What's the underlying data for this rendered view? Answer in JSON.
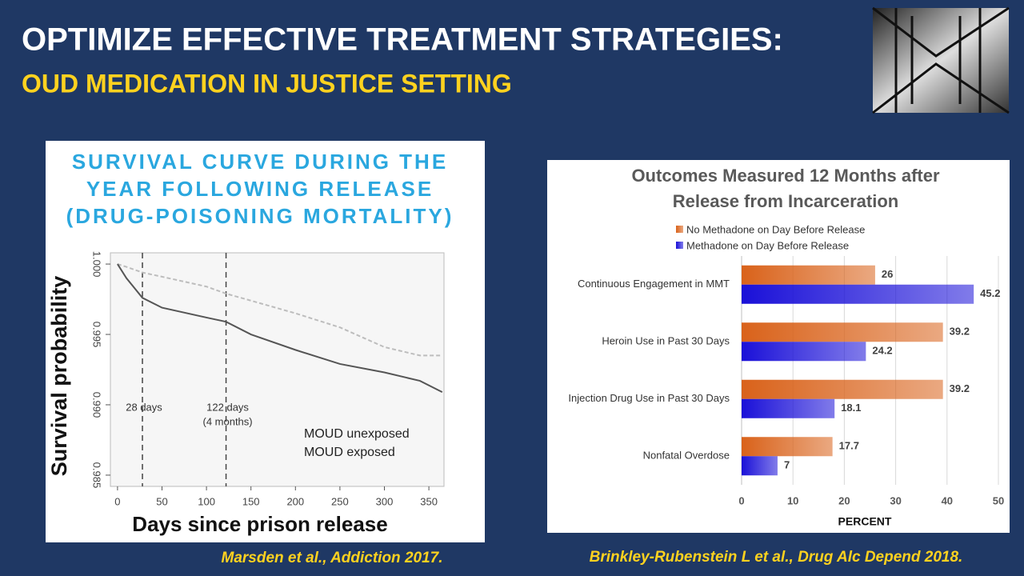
{
  "slide": {
    "title": "OPTIMIZE EFFECTIVE TREATMENT STRATEGIES:",
    "subtitle": "OUD MEDICATION IN JUSTICE SETTING",
    "citations": [
      "Marsden et al., Addiction 2017.",
      "Brinkley-Rubenstein L et al., Drug Alc Depend 2018."
    ]
  },
  "chart_data": [
    {
      "type": "line",
      "title": [
        "SURVIVAL CURVE DURING THE",
        "YEAR FOLLOWING RELEASE",
        "(DRUG-POISONING MORTALITY)"
      ],
      "xlabel": "Days since prison release",
      "ylabel": "Survival probability",
      "x": [
        0,
        10,
        28,
        50,
        100,
        122,
        150,
        200,
        250,
        300,
        340,
        365
      ],
      "series": [
        {
          "name": "MOUD unexposed",
          "color": "#bdbdbd",
          "dashed": true,
          "values": [
            1.0,
            0.9998,
            0.9994,
            0.9991,
            0.9984,
            0.9979,
            0.9974,
            0.9965,
            0.9955,
            0.9941,
            0.9935,
            0.9935
          ]
        },
        {
          "name": "MOUD exposed",
          "color": "#555555",
          "dashed": false,
          "values": [
            1.0,
            0.999,
            0.9976,
            0.9969,
            0.9962,
            0.9959,
            0.995,
            0.9939,
            0.9929,
            0.9923,
            0.9917,
            0.9909
          ]
        }
      ],
      "vlines": [
        {
          "x": 28,
          "label": [
            "28 days"
          ]
        },
        {
          "x": 122,
          "label": [
            "122 days",
            "(4 months)"
          ]
        }
      ],
      "xlim": [
        -8,
        367
      ],
      "xticks": [
        0,
        50,
        100,
        150,
        200,
        250,
        300,
        350
      ],
      "ylim": [
        0.9842,
        1.0008
      ],
      "yticks": [
        {
          "value": 0.985,
          "label": "0.985"
        },
        {
          "value": 0.99,
          "label": "0.990"
        },
        {
          "value": 0.995,
          "label": "0.995"
        },
        {
          "value": 1,
          "label": "1.000"
        }
      ]
    },
    {
      "type": "bar",
      "orientation": "horizontal",
      "title": [
        "Outcomes Measured 12 Months after",
        "Release from Incarceration"
      ],
      "xlabel": "PERCENT",
      "categories": [
        "Continuous Engagement in MMT",
        "Heroin Use in Past 30 Days",
        "Injection Drug Use in Past 30 Days",
        "Nonfatal Overdose"
      ],
      "series": [
        {
          "name": "No Methadone on Day Before Release",
          "color": "#d9621a",
          "values": [
            26,
            39.2,
            39.2,
            17.7
          ]
        },
        {
          "name": "Methadone on Day Before Release",
          "color": "#1a10d8",
          "values": [
            45.2,
            24.2,
            18.1,
            7
          ]
        }
      ],
      "xlim": [
        0,
        50
      ],
      "xticks": [
        0,
        10,
        20,
        30,
        40,
        50
      ],
      "grid": true
    }
  ]
}
